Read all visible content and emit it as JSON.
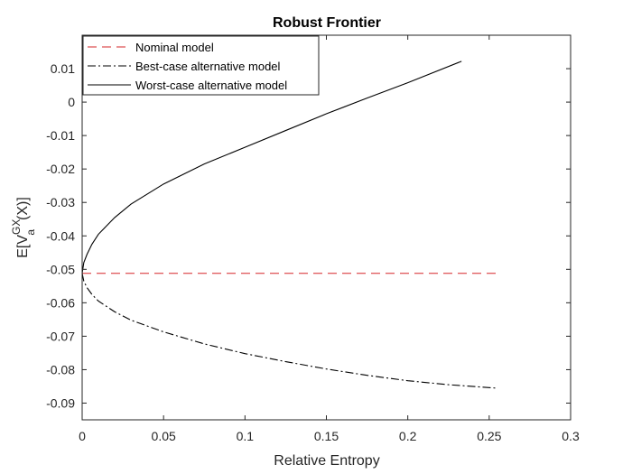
{
  "chart_data": {
    "type": "line",
    "title": "Robust Frontier",
    "xlabel": "Relative Entropy",
    "ylabel": {
      "base": "E[V",
      "sup": "GX",
      "sub": "a",
      "suffix": "(X)]"
    },
    "xlim": [
      0,
      0.3
    ],
    "ylim": [
      -0.095,
      0.02
    ],
    "xticks": [
      0,
      0.05,
      0.1,
      0.15,
      0.2,
      0.25,
      0.3
    ],
    "xtick_labels": [
      "0",
      "0.05",
      "0.1",
      "0.15",
      "0.2",
      "0.25",
      "0.3"
    ],
    "yticks": [
      0.01,
      0,
      -0.01,
      -0.02,
      -0.03,
      -0.04,
      -0.05,
      -0.06,
      -0.07,
      -0.08,
      -0.09
    ],
    "ytick_labels": [
      "0.01",
      "0",
      "-0.01",
      "-0.02",
      "-0.03",
      "-0.04",
      "-0.05",
      "-0.06",
      "-0.07",
      "-0.08",
      "-0.09"
    ],
    "grid": false,
    "legend_position": "top-left",
    "series": [
      {
        "name": "Nominal model",
        "color": "#d62728",
        "style": "dashed",
        "x": [
          0,
          0.254
        ],
        "y": [
          -0.0512,
          -0.0512
        ]
      },
      {
        "name": "Best-case alternative model",
        "color": "#000000",
        "style": "dash-dot",
        "x": [
          0,
          0.001,
          0.003,
          0.006,
          0.01,
          0.02,
          0.03,
          0.05,
          0.075,
          0.1,
          0.125,
          0.15,
          0.175,
          0.2,
          0.225,
          0.254
        ],
        "y": [
          -0.0512,
          -0.0535,
          -0.0555,
          -0.0575,
          -0.0595,
          -0.0627,
          -0.0652,
          -0.0687,
          -0.0723,
          -0.0752,
          -0.0776,
          -0.0798,
          -0.0817,
          -0.0833,
          -0.0845,
          -0.0855
        ]
      },
      {
        "name": "Worst-case alternative model",
        "color": "#000000",
        "style": "solid",
        "x": [
          0,
          0.001,
          0.003,
          0.006,
          0.01,
          0.02,
          0.03,
          0.05,
          0.075,
          0.1,
          0.125,
          0.15,
          0.175,
          0.2,
          0.233
        ],
        "y": [
          -0.0512,
          -0.048,
          -0.0455,
          -0.0425,
          -0.0395,
          -0.0345,
          -0.0305,
          -0.0245,
          -0.0185,
          -0.0135,
          -0.0085,
          -0.0035,
          0.0012,
          0.0058,
          0.0122
        ]
      }
    ]
  }
}
